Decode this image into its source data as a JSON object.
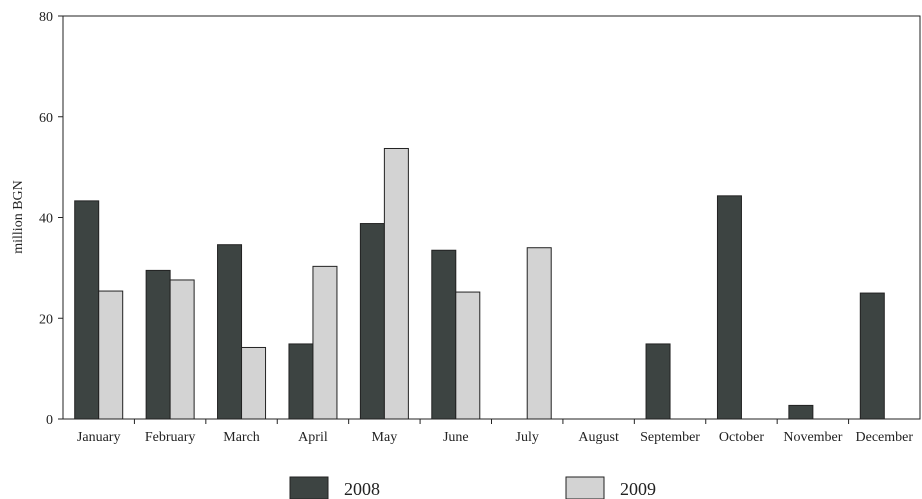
{
  "chart_data": {
    "type": "bar",
    "title": "",
    "xlabel": "",
    "ylabel": "million BGN",
    "ylim": [
      0,
      80
    ],
    "yticks": [
      0,
      20,
      40,
      60,
      80
    ],
    "grid": false,
    "legend_position": "bottom",
    "categories": [
      "January",
      "February",
      "March",
      "April",
      "May",
      "June",
      "July",
      "August",
      "September",
      "October",
      "November",
      "December"
    ],
    "series": [
      {
        "name": "2008",
        "color": "#3d4442",
        "values": [
          43.3,
          29.5,
          34.6,
          14.9,
          38.8,
          33.5,
          null,
          null,
          14.9,
          44.3,
          2.7,
          25.0
        ]
      },
      {
        "name": "2009",
        "color": "#d3d3d3",
        "values": [
          25.4,
          27.6,
          14.2,
          30.3,
          53.7,
          25.2,
          34.0,
          null,
          null,
          null,
          null,
          null
        ]
      }
    ]
  }
}
